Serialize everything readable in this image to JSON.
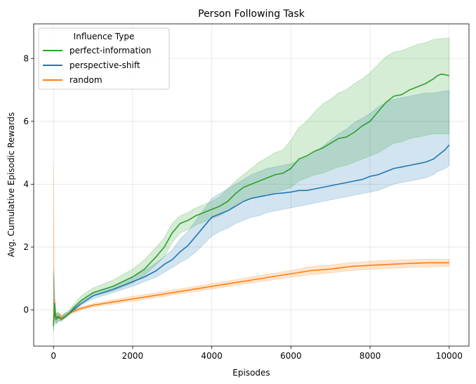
{
  "chart_data": {
    "type": "line",
    "title": "Person Following Task",
    "xlabel": "Episodes",
    "ylabel": "Avg. Cumulative Episodic Rewards",
    "xlim": [
      -500,
      10500
    ],
    "ylim": [
      -1.15,
      9.1
    ],
    "xticks": [
      0,
      2000,
      4000,
      6000,
      8000,
      10000
    ],
    "xtick_labels": [
      "0",
      "2000",
      "4000",
      "6000",
      "8000",
      "10000"
    ],
    "yticks": [
      0,
      2,
      4,
      6,
      8
    ],
    "ytick_labels": [
      "0",
      "2",
      "4",
      "6",
      "8"
    ],
    "grid": true,
    "legend": {
      "title": "Influence Type",
      "location": "top-left"
    },
    "series": [
      {
        "name": "perfect-information",
        "color": "#2ca02c",
        "x": [
          0,
          30,
          60,
          100,
          150,
          200,
          300,
          400,
          500,
          700,
          1000,
          1500,
          2000,
          2300,
          2600,
          2800,
          3000,
          3200,
          3400,
          3600,
          3800,
          4000,
          4200,
          4400,
          4600,
          4800,
          5000,
          5200,
          5400,
          5600,
          5800,
          6000,
          6200,
          6400,
          6600,
          6800,
          7000,
          7200,
          7400,
          7600,
          7800,
          8000,
          8200,
          8400,
          8600,
          8800,
          9000,
          9200,
          9400,
          9600,
          9700,
          9800,
          9900,
          10000
        ],
        "values": [
          -0.5,
          0.15,
          -0.3,
          -0.2,
          -0.25,
          -0.3,
          -0.2,
          -0.1,
          0.05,
          0.3,
          0.55,
          0.75,
          1.05,
          1.3,
          1.7,
          2.0,
          2.45,
          2.75,
          2.85,
          3.0,
          3.1,
          3.2,
          3.3,
          3.45,
          3.7,
          3.9,
          4.0,
          4.1,
          4.2,
          4.3,
          4.35,
          4.5,
          4.8,
          4.9,
          5.05,
          5.15,
          5.3,
          5.45,
          5.5,
          5.65,
          5.85,
          6.0,
          6.3,
          6.6,
          6.8,
          6.85,
          7.0,
          7.1,
          7.2,
          7.35,
          7.45,
          7.5,
          7.48,
          7.45
        ],
        "lower": [
          -0.65,
          -0.1,
          -0.45,
          -0.35,
          -0.35,
          -0.35,
          -0.25,
          -0.15,
          -0.05,
          0.2,
          0.45,
          0.6,
          0.85,
          1.1,
          1.45,
          1.7,
          2.15,
          2.45,
          2.55,
          2.7,
          2.8,
          2.9,
          3.0,
          3.15,
          3.35,
          3.5,
          3.55,
          3.6,
          3.7,
          3.75,
          3.8,
          3.9,
          4.1,
          4.2,
          4.3,
          4.35,
          4.45,
          4.55,
          4.6,
          4.7,
          4.8,
          4.9,
          5.0,
          5.15,
          5.3,
          5.35,
          5.45,
          5.5,
          5.55,
          5.6,
          5.6,
          5.6,
          5.6,
          5.6
        ],
        "upper": [
          1.3,
          0.35,
          -0.15,
          -0.05,
          -0.1,
          -0.2,
          -0.1,
          0.0,
          0.15,
          0.45,
          0.7,
          0.95,
          1.3,
          1.6,
          2.0,
          2.3,
          2.75,
          3.0,
          3.1,
          3.25,
          3.35,
          3.45,
          3.6,
          3.85,
          4.1,
          4.3,
          4.5,
          4.7,
          4.85,
          5.0,
          5.1,
          5.4,
          5.8,
          6.0,
          6.3,
          6.55,
          6.7,
          6.9,
          7.0,
          7.2,
          7.35,
          7.55,
          7.8,
          8.05,
          8.2,
          8.25,
          8.35,
          8.45,
          8.5,
          8.6,
          8.62,
          8.63,
          8.64,
          8.65
        ]
      },
      {
        "name": "perspective-shift",
        "color": "#1f77b4",
        "x": [
          0,
          30,
          60,
          100,
          150,
          200,
          300,
          400,
          500,
          700,
          1000,
          1500,
          2000,
          2300,
          2600,
          2800,
          3000,
          3200,
          3400,
          3600,
          3800,
          4000,
          4200,
          4400,
          4600,
          4800,
          5000,
          5200,
          5400,
          5600,
          5800,
          6000,
          6200,
          6400,
          6600,
          6800,
          7000,
          7200,
          7400,
          7600,
          7800,
          8000,
          8200,
          8400,
          8600,
          8800,
          9000,
          9200,
          9400,
          9600,
          9700,
          9800,
          9900,
          10000
        ],
        "values": [
          -0.5,
          0.2,
          -0.3,
          -0.25,
          -0.25,
          -0.3,
          -0.2,
          -0.1,
          0.0,
          0.2,
          0.45,
          0.65,
          0.9,
          1.05,
          1.25,
          1.45,
          1.6,
          1.85,
          2.05,
          2.35,
          2.65,
          2.95,
          3.05,
          3.15,
          3.3,
          3.45,
          3.55,
          3.6,
          3.65,
          3.7,
          3.72,
          3.75,
          3.8,
          3.8,
          3.85,
          3.9,
          3.95,
          4.0,
          4.05,
          4.1,
          4.15,
          4.25,
          4.3,
          4.4,
          4.5,
          4.55,
          4.6,
          4.65,
          4.7,
          4.8,
          4.9,
          5.0,
          5.1,
          5.25
        ],
        "lower": [
          -0.7,
          -0.05,
          -0.45,
          -0.4,
          -0.35,
          -0.35,
          -0.25,
          -0.15,
          -0.05,
          0.15,
          0.35,
          0.55,
          0.75,
          0.9,
          1.05,
          1.2,
          1.35,
          1.5,
          1.65,
          1.85,
          2.1,
          2.35,
          2.5,
          2.6,
          2.75,
          2.85,
          2.95,
          3.0,
          3.1,
          3.15,
          3.2,
          3.25,
          3.3,
          3.35,
          3.4,
          3.45,
          3.5,
          3.55,
          3.6,
          3.65,
          3.7,
          3.75,
          3.8,
          3.9,
          4.0,
          4.05,
          4.1,
          4.15,
          4.2,
          4.3,
          4.4,
          4.45,
          4.5,
          4.6
        ],
        "upper": [
          1.2,
          0.4,
          -0.15,
          -0.1,
          -0.15,
          -0.2,
          -0.1,
          -0.05,
          0.1,
          0.3,
          0.55,
          0.75,
          1.05,
          1.25,
          1.5,
          1.7,
          1.9,
          2.25,
          2.5,
          2.85,
          3.2,
          3.55,
          3.7,
          3.85,
          4.0,
          4.15,
          4.3,
          4.4,
          4.5,
          4.55,
          4.6,
          4.65,
          4.75,
          4.85,
          5.0,
          5.2,
          5.4,
          5.6,
          5.75,
          5.95,
          6.1,
          6.25,
          6.45,
          6.6,
          6.7,
          6.75,
          6.8,
          6.85,
          6.9,
          6.9,
          6.92,
          6.94,
          6.96,
          6.98
        ]
      },
      {
        "name": "random",
        "color": "#ff7f0e",
        "x": [
          0,
          20,
          40,
          60,
          100,
          150,
          200,
          300,
          400,
          500,
          700,
          1000,
          1500,
          2000,
          2500,
          3000,
          3500,
          4000,
          4500,
          5000,
          5500,
          6000,
          6500,
          7000,
          7500,
          8000,
          8500,
          9000,
          9500,
          10000
        ],
        "values": [
          -0.4,
          0.3,
          -0.2,
          -0.3,
          -0.2,
          -0.2,
          -0.25,
          -0.2,
          -0.1,
          -0.05,
          0.05,
          0.15,
          0.25,
          0.35,
          0.45,
          0.55,
          0.65,
          0.75,
          0.85,
          0.95,
          1.05,
          1.15,
          1.25,
          1.3,
          1.38,
          1.42,
          1.45,
          1.48,
          1.5,
          1.5
        ],
        "lower": [
          -0.65,
          -0.3,
          -0.35,
          -0.4,
          -0.3,
          -0.3,
          -0.3,
          -0.25,
          -0.15,
          -0.1,
          0.0,
          0.1,
          0.18,
          0.28,
          0.37,
          0.47,
          0.57,
          0.66,
          0.76,
          0.86,
          0.95,
          1.04,
          1.12,
          1.18,
          1.25,
          1.29,
          1.32,
          1.35,
          1.37,
          1.38
        ],
        "upper": [
          4.7,
          1.2,
          0.1,
          -0.15,
          -0.1,
          -0.1,
          -0.15,
          -0.12,
          -0.05,
          0.0,
          0.1,
          0.2,
          0.32,
          0.43,
          0.53,
          0.63,
          0.73,
          0.84,
          0.94,
          1.05,
          1.15,
          1.26,
          1.38,
          1.43,
          1.5,
          1.55,
          1.58,
          1.6,
          1.62,
          1.62
        ]
      }
    ]
  }
}
